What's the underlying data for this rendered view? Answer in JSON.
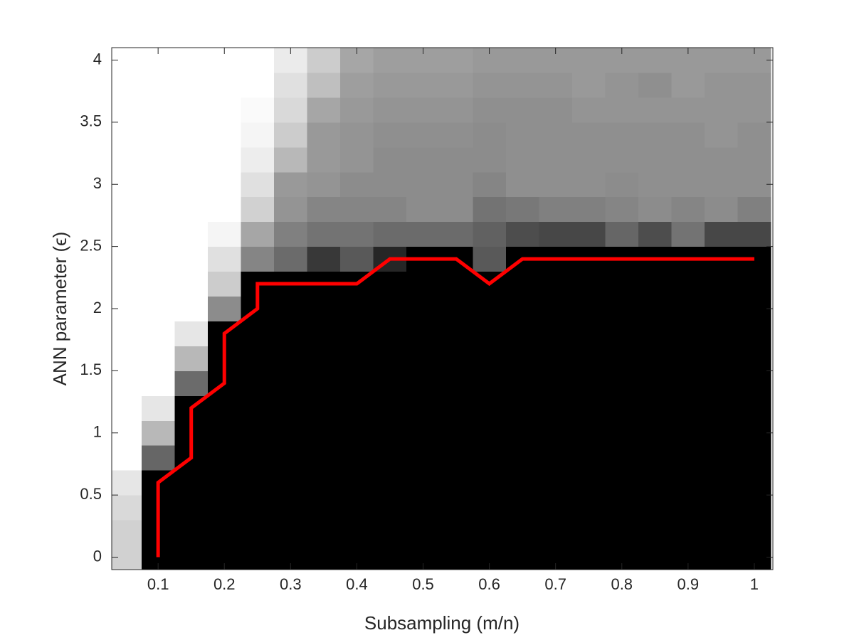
{
  "chart_data": {
    "type": "heatmap",
    "x": [
      0.05,
      0.1,
      0.15,
      0.2,
      0.25,
      0.3,
      0.35,
      0.4,
      0.45,
      0.5,
      0.55,
      0.6,
      0.65,
      0.7,
      0.75,
      0.8,
      0.85,
      0.9,
      0.95,
      1
    ],
    "y": [
      0,
      0.2,
      0.4,
      0.6,
      0.8,
      1,
      1.2,
      1.4,
      1.6,
      1.8,
      2,
      2.2,
      2.4,
      2.6,
      2.8,
      3,
      3.2,
      3.4,
      3.6,
      3.8,
      4
    ],
    "z": [
      [
        0.82,
        0,
        0,
        0,
        0,
        0,
        0,
        0,
        0,
        0,
        0,
        0,
        0,
        0,
        0,
        0,
        0,
        0,
        0,
        0
      ],
      [
        0.82,
        0,
        0,
        0,
        0,
        0,
        0,
        0,
        0,
        0,
        0,
        0,
        0,
        0,
        0,
        0,
        0,
        0,
        0,
        0
      ],
      [
        0.85,
        0,
        0,
        0,
        0,
        0,
        0,
        0,
        0,
        0,
        0,
        0,
        0,
        0,
        0,
        0,
        0,
        0,
        0,
        0
      ],
      [
        0.9,
        0,
        0,
        0,
        0,
        0,
        0,
        0,
        0,
        0,
        0,
        0,
        0,
        0,
        0,
        0,
        0,
        0,
        0,
        0
      ],
      [
        1,
        0.4,
        0,
        0,
        0,
        0,
        0,
        0,
        0,
        0,
        0,
        0,
        0,
        0,
        0,
        0,
        0,
        0,
        0,
        0
      ],
      [
        1,
        0.72,
        0,
        0,
        0,
        0,
        0,
        0,
        0,
        0,
        0,
        0,
        0,
        0,
        0,
        0,
        0,
        0,
        0,
        0
      ],
      [
        1,
        0.9,
        0,
        0,
        0,
        0,
        0,
        0,
        0,
        0,
        0,
        0,
        0,
        0,
        0,
        0,
        0,
        0,
        0,
        0
      ],
      [
        1,
        1,
        0.42,
        0,
        0,
        0,
        0,
        0,
        0,
        0,
        0,
        0,
        0,
        0,
        0,
        0,
        0,
        0,
        0,
        0
      ],
      [
        1,
        1,
        0.72,
        0,
        0,
        0,
        0,
        0,
        0,
        0,
        0,
        0,
        0,
        0,
        0,
        0,
        0,
        0,
        0,
        0
      ],
      [
        1,
        1,
        0.9,
        0,
        0,
        0,
        0,
        0,
        0,
        0,
        0,
        0,
        0,
        0,
        0,
        0,
        0,
        0,
        0,
        0
      ],
      [
        1,
        1,
        1,
        0.55,
        0,
        0,
        0,
        0,
        0,
        0,
        0,
        0,
        0,
        0,
        0,
        0,
        0,
        0,
        0,
        0
      ],
      [
        1,
        1,
        1,
        0.8,
        0,
        0,
        0,
        0,
        0,
        0,
        0,
        0,
        0,
        0,
        0,
        0,
        0,
        0,
        0,
        0
      ],
      [
        1,
        1,
        1,
        0.88,
        0.52,
        0.42,
        0.22,
        0.35,
        0.15,
        0,
        0,
        0.35,
        0,
        0,
        0,
        0,
        0,
        0,
        0,
        0
      ],
      [
        1,
        1,
        1,
        0.96,
        0.65,
        0.5,
        0.45,
        0.45,
        0.42,
        0.42,
        0.42,
        0.38,
        0.3,
        0.28,
        0.28,
        0.4,
        0.3,
        0.45,
        0.28,
        0.28
      ],
      [
        1,
        1,
        1,
        1,
        0.82,
        0.58,
        0.52,
        0.52,
        0.52,
        0.55,
        0.55,
        0.45,
        0.47,
        0.5,
        0.5,
        0.52,
        0.55,
        0.52,
        0.55,
        0.5
      ],
      [
        1,
        1,
        1,
        1,
        0.88,
        0.6,
        0.58,
        0.55,
        0.55,
        0.55,
        0.55,
        0.52,
        0.56,
        0.56,
        0.56,
        0.55,
        0.56,
        0.56,
        0.56,
        0.56
      ],
      [
        1,
        1,
        1,
        1,
        0.93,
        0.72,
        0.6,
        0.58,
        0.55,
        0.55,
        0.55,
        0.55,
        0.56,
        0.56,
        0.56,
        0.56,
        0.56,
        0.56,
        0.56,
        0.56
      ],
      [
        1,
        1,
        1,
        1,
        0.96,
        0.8,
        0.6,
        0.58,
        0.56,
        0.56,
        0.56,
        0.55,
        0.56,
        0.56,
        0.56,
        0.56,
        0.56,
        0.56,
        0.58,
        0.56
      ],
      [
        1,
        1,
        1,
        1,
        0.98,
        0.85,
        0.65,
        0.6,
        0.58,
        0.58,
        0.58,
        0.56,
        0.56,
        0.56,
        0.58,
        0.58,
        0.58,
        0.58,
        0.58,
        0.58
      ],
      [
        1,
        1,
        1,
        1,
        1,
        0.88,
        0.75,
        0.62,
        0.6,
        0.6,
        0.6,
        0.58,
        0.58,
        0.58,
        0.6,
        0.58,
        0.56,
        0.6,
        0.58,
        0.58
      ],
      [
        1,
        1,
        1,
        1,
        1,
        0.92,
        0.8,
        0.65,
        0.62,
        0.62,
        0.62,
        0.6,
        0.6,
        0.6,
        0.6,
        0.6,
        0.6,
        0.6,
        0.6,
        0.6
      ]
    ],
    "line": {
      "color": "#ff0000",
      "x": [
        0.1,
        0.1,
        0.15,
        0.15,
        0.2,
        0.2,
        0.25,
        0.25,
        0.4,
        0.45,
        0.55,
        0.6,
        0.65,
        1
      ],
      "y": [
        0,
        0.6,
        0.8,
        1.2,
        1.4,
        1.8,
        2,
        2.2,
        2.2,
        2.4,
        2.4,
        2.2,
        2.4,
        2.4
      ]
    },
    "xlabel": "Subsampling (m/n)",
    "ylabel": "ANN parameter (ϵ)",
    "xlim": [
      0.03,
      1.028
    ],
    "ylim": [
      -0.1,
      4.1
    ],
    "xticks": [
      0.1,
      0.2,
      0.3,
      0.4,
      0.5,
      0.6,
      0.7,
      0.8,
      0.9,
      1
    ],
    "yticks": [
      0,
      0.5,
      1,
      1.5,
      2,
      2.5,
      3,
      3.5,
      4
    ]
  }
}
